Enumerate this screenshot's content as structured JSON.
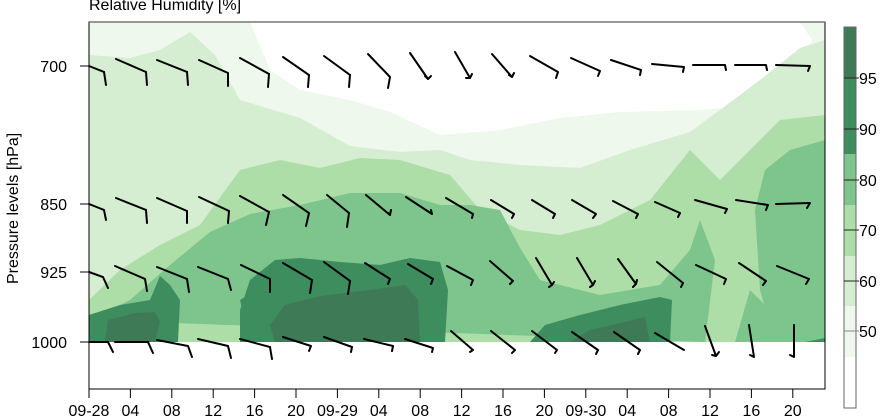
{
  "chart_data": {
    "type": "heatmap",
    "subtype": "filled-contour with wind barbs (time-pressure cross section)",
    "title": "Relative Humidity [%]",
    "xlabel": "",
    "ylabel": "Pressure levels [hPa]",
    "x_ticks": [
      "09-28",
      "04",
      "08",
      "12",
      "16",
      "20",
      "09-29",
      "04",
      "08",
      "12",
      "16",
      "20",
      "09-30",
      "04",
      "08",
      "12",
      "16",
      "20"
    ],
    "y_ticks": [
      "700",
      "850",
      "925",
      "1000"
    ],
    "ylim": [
      1050,
      650
    ],
    "colorbar": {
      "levels": [
        50,
        60,
        70,
        80,
        90,
        95
      ],
      "labels": [
        "50",
        "60",
        "70",
        "80",
        "90",
        "95"
      ],
      "colors": [
        "#ffffff",
        "#eef8ec",
        "#d5edd0",
        "#addea7",
        "#7dc48d",
        "#3d8d5e",
        "#3f7a56"
      ]
    },
    "wind_barbs": {
      "levels": [
        700,
        850,
        925,
        1000
      ],
      "times_per_level": 18,
      "description": "NW winds at most levels, turning westerly at 700/850 hPa late on 09-30; northerly near surface late 09-30"
    },
    "grid": false,
    "legend_position": "right colorbar"
  }
}
